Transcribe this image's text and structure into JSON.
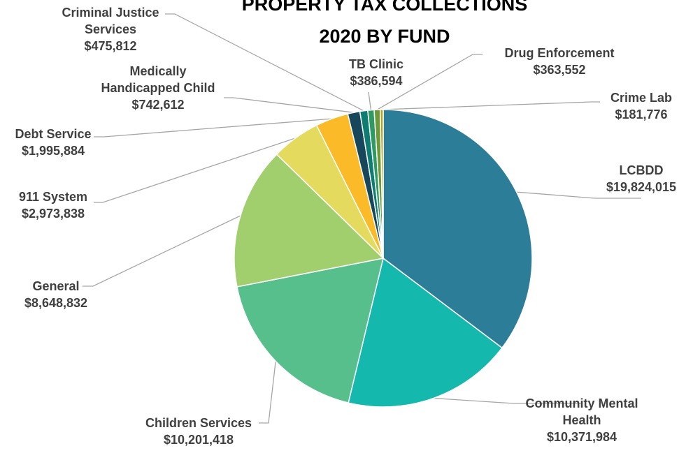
{
  "chart_data": {
    "type": "pie",
    "title_lines": [
      "PROPERTY TAX COLLECTIONS",
      "2020 BY FUND"
    ],
    "slices": [
      {
        "label_lines": [
          "LCBDD"
        ],
        "value": 19824015,
        "value_label": "$19,824,015",
        "color": "#2c7e98"
      },
      {
        "label_lines": [
          "Community Mental",
          "Health"
        ],
        "value": 10371984,
        "value_label": "$10,371,984",
        "color": "#15b8ad"
      },
      {
        "label_lines": [
          "Children Services"
        ],
        "value": 10201418,
        "value_label": "$10,201,418",
        "color": "#56bf8c"
      },
      {
        "label_lines": [
          "General"
        ],
        "value": 8648832,
        "value_label": "$8,648,832",
        "color": "#a1cf6e"
      },
      {
        "label_lines": [
          "911 System"
        ],
        "value": 2973838,
        "value_label": "$2,973,838",
        "color": "#e4da5e"
      },
      {
        "label_lines": [
          "Debt Service"
        ],
        "value": 1995884,
        "value_label": "$1,995,884",
        "color": "#fbbb28"
      },
      {
        "label_lines": [
          "Medically",
          "Handicapped Child"
        ],
        "value": 742612,
        "value_label": "$742,612",
        "color": "#17475b"
      },
      {
        "label_lines": [
          "Criminal Justice",
          "Services"
        ],
        "value": 475812,
        "value_label": "$475,812",
        "color": "#0d7d72"
      },
      {
        "label_lines": [
          "TB Clinic"
        ],
        "value": 386594,
        "value_label": "$386,594",
        "color": "#2d9a62"
      },
      {
        "label_lines": [
          "Drug Enforcement"
        ],
        "value": 363552,
        "value_label": "$363,552",
        "color": "#6c9a3a"
      },
      {
        "label_lines": [
          "Crime Lab"
        ],
        "value": 181776,
        "value_label": "$181,776",
        "color": "#b9a21c"
      }
    ]
  }
}
